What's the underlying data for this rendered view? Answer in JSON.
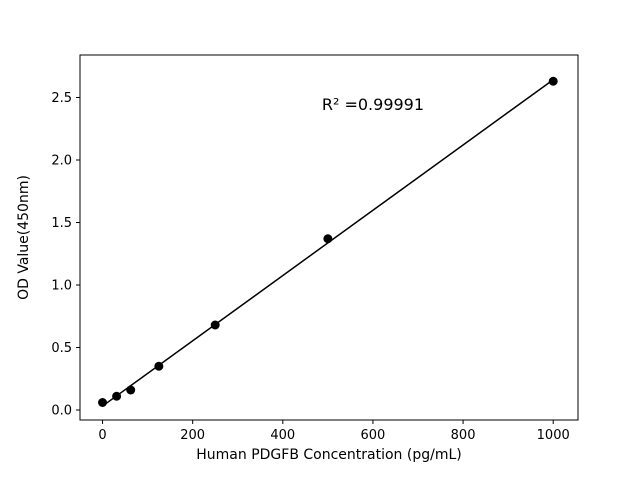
{
  "chart_data": {
    "type": "scatter",
    "title": "",
    "xlabel": "Human PDGFB Concentration (pg/mL)",
    "ylabel": "OD Value(450nm)",
    "x": [
      0,
      31.25,
      62.5,
      125,
      250,
      500,
      1000
    ],
    "y": [
      0.06,
      0.11,
      0.16,
      0.35,
      0.68,
      1.37,
      2.63
    ],
    "xticks": [
      0,
      200,
      400,
      600,
      800,
      1000
    ],
    "yticks": [
      "0.0",
      "0.5",
      "1.0",
      "1.5",
      "2.0",
      "2.5"
    ],
    "xlim": [
      -50,
      1055
    ],
    "ylim": [
      -0.08,
      2.84
    ],
    "legend": "none",
    "grid": false,
    "annotation": {
      "text": "R² =0.99991",
      "x": 600,
      "y": 2.4
    },
    "marker_color": "#000000",
    "line_color": "#000000",
    "background_color": "#ffffff"
  }
}
